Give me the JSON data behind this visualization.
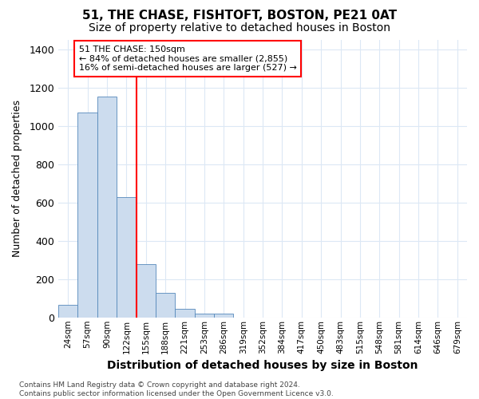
{
  "title": "51, THE CHASE, FISHTOFT, BOSTON, PE21 0AT",
  "subtitle": "Size of property relative to detached houses in Boston",
  "xlabel": "Distribution of detached houses by size in Boston",
  "ylabel": "Number of detached properties",
  "bar_color": "#ccdcee",
  "bar_edge_color": "#5588bb",
  "all_bar_values": [
    65,
    1070,
    1155,
    630,
    280,
    130,
    45,
    20,
    20,
    0,
    0,
    0,
    0,
    0,
    0,
    0,
    0,
    0,
    0,
    0,
    0
  ],
  "bar_labels": [
    "24sqm",
    "57sqm",
    "90sqm",
    "122sqm",
    "155sqm",
    "188sqm",
    "221sqm",
    "253sqm",
    "286sqm",
    "319sqm",
    "352sqm",
    "384sqm",
    "417sqm",
    "450sqm",
    "483sqm",
    "515sqm",
    "548sqm",
    "581sqm",
    "614sqm",
    "646sqm",
    "679sqm"
  ],
  "ylim": [
    0,
    1450
  ],
  "yticks": [
    0,
    200,
    400,
    600,
    800,
    1000,
    1200,
    1400
  ],
  "red_line_x": 4.0,
  "annotation_text": "51 THE CHASE: 150sqm\n← 84% of detached houses are smaller (2,855)\n16% of semi-detached houses are larger (527) →",
  "annotation_box_color": "white",
  "annotation_box_edge_color": "red",
  "footnote": "Contains HM Land Registry data © Crown copyright and database right 2024.\nContains public sector information licensed under the Open Government Licence v3.0.",
  "bg_color": "#ffffff",
  "grid_color": "#dce8f5",
  "title_fontsize": 11,
  "subtitle_fontsize": 10
}
